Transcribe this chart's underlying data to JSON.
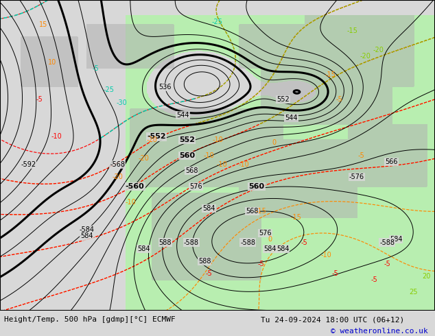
{
  "title_left": "Height/Temp. 500 hPa [gdmp][°C] ECMWF",
  "title_right": "Tu 24-09-2024 18:00 UTC (06+12)",
  "credit": "© weatheronline.co.uk",
  "bg_color": "#d8d8d8",
  "green_color": "#b8eeb0",
  "land_gray": "#b0b0b0",
  "white_bg": "#ffffff",
  "black": "#000000",
  "orange": "#ff8800",
  "red": "#ff0000",
  "cyan": "#00ccaa",
  "green_line": "#88cc00",
  "credit_blue": "#0000cc",
  "fig_w": 6.34,
  "fig_h": 4.9,
  "dpi": 100
}
